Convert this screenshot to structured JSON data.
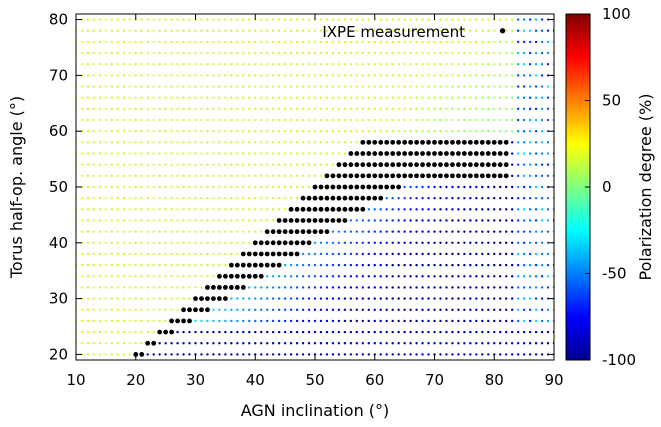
{
  "chart_data": {
    "type": "scatter",
    "title": "",
    "xlabel": "AGN inclination (°)",
    "ylabel": "Torus half-op. angle (°)",
    "colorbar_label": "Polarization degree (%)",
    "xlim": [
      10,
      90
    ],
    "ylim": [
      19,
      81
    ],
    "clim": [
      -100,
      100
    ],
    "xticks": [
      "10",
      "20",
      "30",
      "40",
      "50",
      "60",
      "70",
      "80",
      "90"
    ],
    "yticks": [
      "20",
      "30",
      "40",
      "50",
      "60",
      "70",
      "80"
    ],
    "cticks": [
      "100",
      "50",
      "0",
      "-50",
      "-100"
    ],
    "colormap": "jet",
    "grid": false,
    "legend": "none",
    "annotation": "IXPE measurement",
    "ixpe_point": {
      "x": 81.4,
      "y": 78
    },
    "grid_sampling": {
      "x_start": 10,
      "x_end": 90,
      "x_step": 1,
      "y_start": 20,
      "y_end": 80,
      "y_step": 2
    },
    "boundary_description": "Points below the diagonal (inclination > torus angle) have negative polarization degree; points with inclination < torus angle have small positive polarization (~+15%).",
    "black_points_color": "#000000"
  }
}
